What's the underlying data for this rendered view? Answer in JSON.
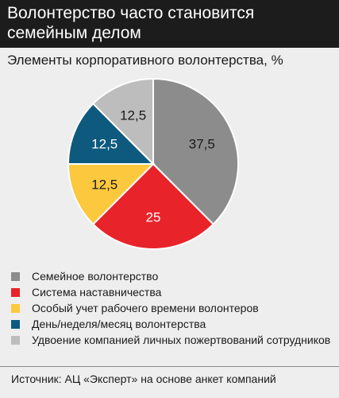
{
  "header": {
    "title": "Волонтерство часто становится семейным делом"
  },
  "chart_data": {
    "type": "pie",
    "title": "Элементы корпоративного волонтерства, %",
    "slices": [
      {
        "label": "Семейное волонтерство",
        "value": 37.5,
        "display": "37,5",
        "color": "#8c8c8c"
      },
      {
        "label": "Система наставничества",
        "value": 25,
        "display": "25",
        "color": "#e8232a"
      },
      {
        "label": "Особый учет рабочего времени волонтеров",
        "value": 12.5,
        "display": "12,5",
        "color": "#fbc83e"
      },
      {
        "label": "День/неделя/месяц волонтерства",
        "value": 12.5,
        "display": "12,5",
        "color": "#0e5a7e"
      },
      {
        "label": "Удвоение компанией личных пожертвований сотрудников",
        "value": 12.5,
        "display": "12,5",
        "color": "#bdbdbd"
      }
    ],
    "label_colors": [
      "#1a1a1a",
      "#ffffff",
      "#1a1a1a",
      "#ffffff",
      "#1a1a1a"
    ],
    "legend_position": "bottom"
  },
  "source": {
    "text": "Источник: АЦ «Эксперт» на основе анкет компаний"
  }
}
